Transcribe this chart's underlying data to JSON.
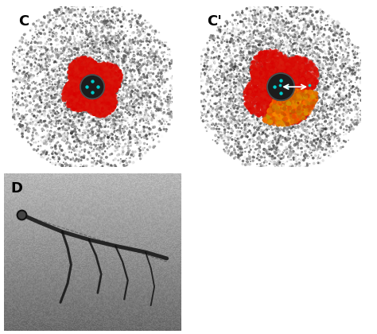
{
  "label_color": "#000000",
  "label_fontsize": 13,
  "background_color": "#ffffff",
  "fig_width": 4.74,
  "fig_height": 4.2
}
